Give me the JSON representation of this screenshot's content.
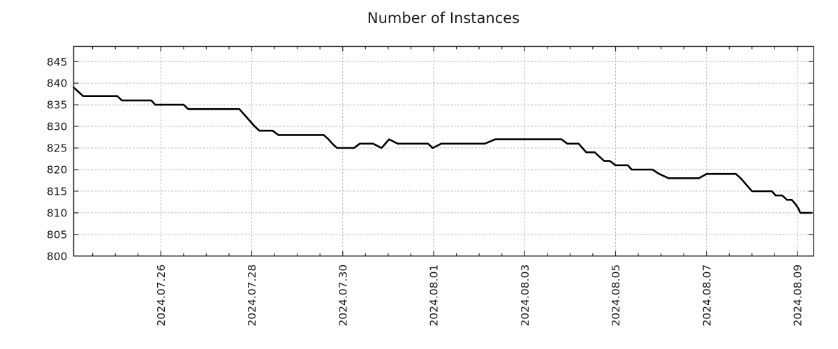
{
  "chart_data": {
    "type": "line",
    "title": "Number of Instances",
    "xlabel": "",
    "ylabel": "",
    "legend_position": "none",
    "grid": true,
    "line_color": "#000000",
    "grid_color": "#b3b3b3",
    "axis_color": "#262626",
    "text_color": "#1a1a1a",
    "ylim": [
      800,
      848.5
    ],
    "yticks": [
      800,
      805,
      810,
      815,
      820,
      825,
      830,
      835,
      840,
      845
    ],
    "xlim": [
      "2024-07-24 02:00",
      "2024-08-09 08:30"
    ],
    "minor_tick_hours": 12,
    "xticks": [
      {
        "date": "2024-07-26",
        "label": "2024.07.26"
      },
      {
        "date": "2024-07-28",
        "label": "2024.07.28"
      },
      {
        "date": "2024-07-30",
        "label": "2024.07.30"
      },
      {
        "date": "2024-08-01",
        "label": "2024.08.01"
      },
      {
        "date": "2024-08-03",
        "label": "2024.08.03"
      },
      {
        "date": "2024-08-05",
        "label": "2024.08.05"
      },
      {
        "date": "2024-08-07",
        "label": "2024.08.07"
      },
      {
        "date": "2024-08-09",
        "label": "2024.08.09"
      }
    ],
    "series": [
      {
        "name": "Number of Instances",
        "color": "#000000",
        "points": [
          [
            "2024-07-24 02:00",
            839
          ],
          [
            "2024-07-24 04:30",
            838
          ],
          [
            "2024-07-24 07:00",
            837
          ],
          [
            "2024-07-25 01:00",
            837
          ],
          [
            "2024-07-25 03:30",
            836
          ],
          [
            "2024-07-25 19:00",
            836
          ],
          [
            "2024-07-25 21:00",
            835
          ],
          [
            "2024-07-26 12:00",
            835
          ],
          [
            "2024-07-26 14:30",
            834
          ],
          [
            "2024-07-27 17:30",
            834
          ],
          [
            "2024-07-27 19:30",
            833
          ],
          [
            "2024-07-27 21:30",
            832
          ],
          [
            "2024-07-27 23:30",
            831
          ],
          [
            "2024-07-28 01:30",
            830
          ],
          [
            "2024-07-28 04:00",
            829
          ],
          [
            "2024-07-28 11:00",
            829
          ],
          [
            "2024-07-28 14:00",
            828
          ],
          [
            "2024-07-29 14:00",
            828
          ],
          [
            "2024-07-29 16:30",
            827
          ],
          [
            "2024-07-29 18:30",
            826
          ],
          [
            "2024-07-29 21:00",
            825
          ],
          [
            "2024-07-30 06:00",
            825
          ],
          [
            "2024-07-30 09:00",
            826
          ],
          [
            "2024-07-30 16:00",
            826
          ],
          [
            "2024-07-30 20:30",
            825
          ],
          [
            "2024-07-31 00:30",
            827
          ],
          [
            "2024-07-31 05:00",
            826
          ],
          [
            "2024-07-31 21:00",
            826
          ],
          [
            "2024-07-31 23:30",
            825
          ],
          [
            "2024-08-01 04:00",
            826
          ],
          [
            "2024-08-02 03:00",
            826
          ],
          [
            "2024-08-02 08:30",
            827
          ],
          [
            "2024-08-03 19:30",
            827
          ],
          [
            "2024-08-03 22:30",
            826
          ],
          [
            "2024-08-04 04:30",
            826
          ],
          [
            "2024-08-04 06:30",
            825
          ],
          [
            "2024-08-04 08:30",
            824
          ],
          [
            "2024-08-04 13:00",
            824
          ],
          [
            "2024-08-04 15:30",
            823
          ],
          [
            "2024-08-04 18:00",
            822
          ],
          [
            "2024-08-04 21:00",
            822
          ],
          [
            "2024-08-05 00:00",
            821
          ],
          [
            "2024-08-05 06:30",
            821
          ],
          [
            "2024-08-05 08:30",
            820
          ],
          [
            "2024-08-05 19:30",
            820
          ],
          [
            "2024-08-05 23:00",
            819
          ],
          [
            "2024-08-06 04:00",
            818
          ],
          [
            "2024-08-06 20:00",
            818
          ],
          [
            "2024-08-07 00:00",
            819
          ],
          [
            "2024-08-07 15:30",
            819
          ],
          [
            "2024-08-07 18:00",
            818
          ],
          [
            "2024-08-07 20:00",
            817
          ],
          [
            "2024-08-07 22:00",
            816
          ],
          [
            "2024-08-08 00:00",
            815
          ],
          [
            "2024-08-08 10:30",
            815
          ],
          [
            "2024-08-08 12:30",
            814
          ],
          [
            "2024-08-08 16:00",
            814
          ],
          [
            "2024-08-08 18:30",
            813
          ],
          [
            "2024-08-08 21:00",
            813
          ],
          [
            "2024-08-08 23:00",
            812
          ],
          [
            "2024-08-09 00:30",
            811
          ],
          [
            "2024-08-09 01:30",
            810
          ],
          [
            "2024-08-09 07:30",
            810
          ]
        ]
      }
    ]
  }
}
